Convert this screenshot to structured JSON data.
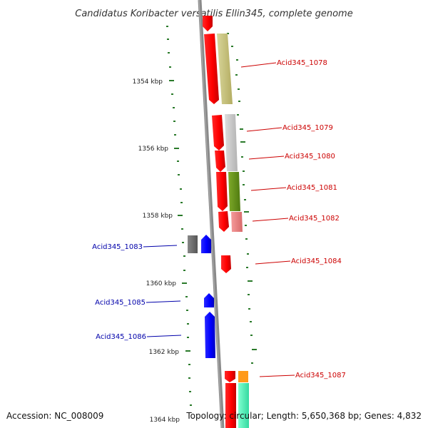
{
  "title": "Candidatus Koribacter versatilis Ellin345, complete genome",
  "accession": "Accession: NC_008009",
  "summary": "Topology: circular; Length: 5,650,368 bp; Genes: 4,832",
  "kbp_labels": [
    "1354 kbp",
    "1356 kbp",
    "1358 kbp",
    "1360 kbp",
    "1362 kbp",
    "1364 kbp"
  ],
  "genes": [
    {
      "label": "Acid345_1078",
      "strand": "right",
      "color": "#cc0000"
    },
    {
      "label": "Acid345_1079",
      "strand": "right",
      "color": "#cc0000"
    },
    {
      "label": "Acid345_1080",
      "strand": "right",
      "color": "#cc0000"
    },
    {
      "label": "Acid345_1081",
      "strand": "right",
      "color": "#cc0000"
    },
    {
      "label": "Acid345_1082",
      "strand": "right",
      "color": "#cc0000"
    },
    {
      "label": "Acid345_1083",
      "strand": "left",
      "color": "#0000aa"
    },
    {
      "label": "Acid345_1084",
      "strand": "right",
      "color": "#cc0000"
    },
    {
      "label": "Acid345_1085",
      "strand": "left",
      "color": "#0000aa"
    },
    {
      "label": "Acid345_1086",
      "strand": "left",
      "color": "#0000aa"
    },
    {
      "label": "Acid345_1087",
      "strand": "right",
      "color": "#cc0000"
    }
  ],
  "colors": {
    "forward_gene": "#ff0000",
    "reverse_gene": "#0000ff",
    "backbone": "#888888",
    "gc_marks": "#2a7a2a"
  }
}
